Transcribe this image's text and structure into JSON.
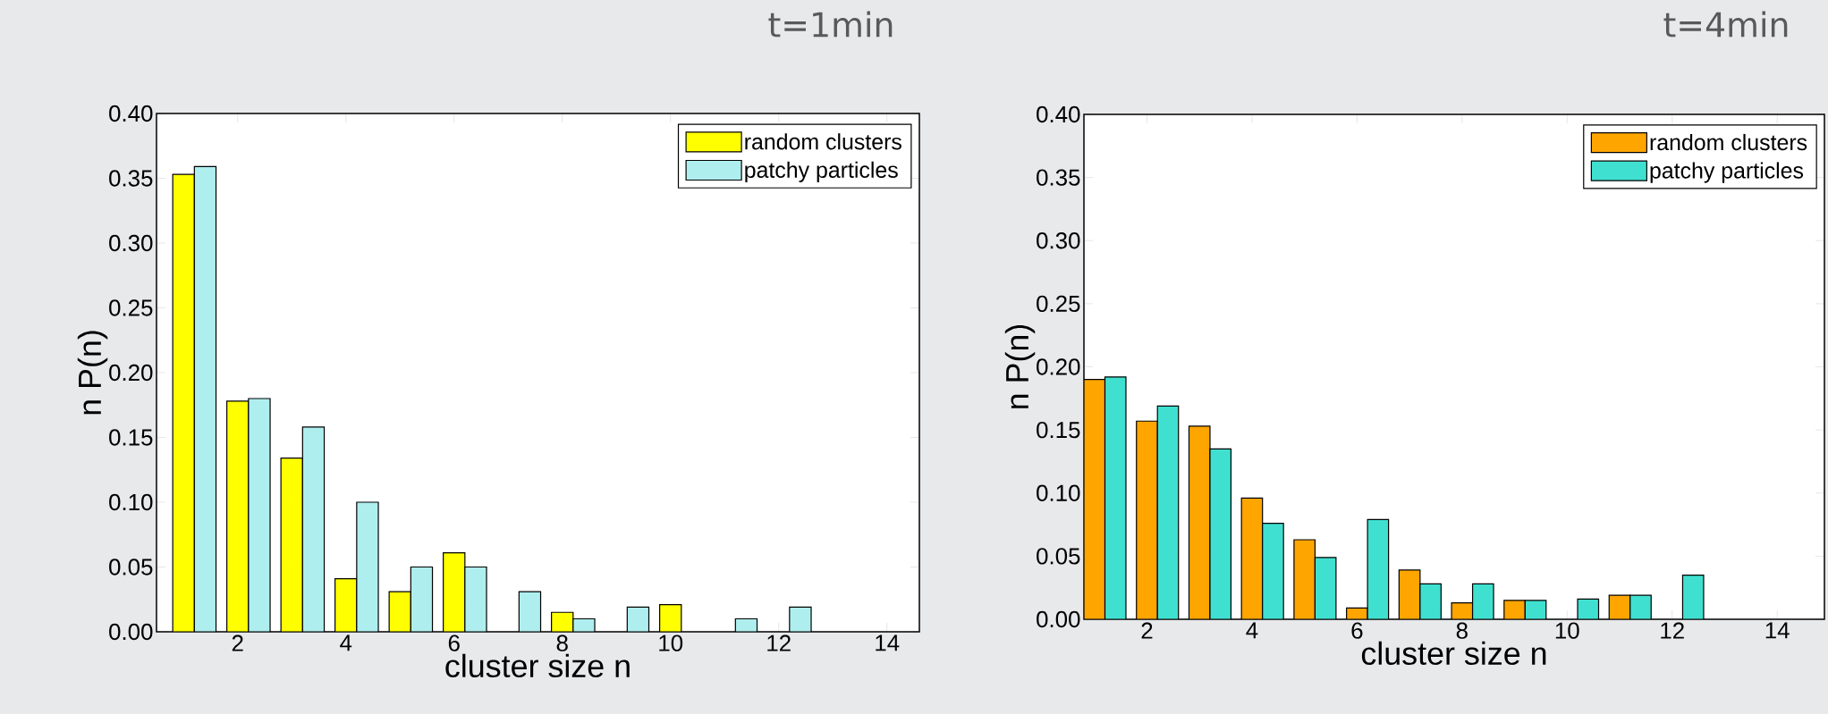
{
  "chart_data": [
    {
      "type": "bar",
      "title": "t=1min",
      "xlabel": "cluster size n",
      "ylabel": "n P(n)",
      "x": [
        1,
        2,
        3,
        4,
        5,
        6,
        7,
        8,
        9,
        10,
        11,
        12
      ],
      "series": [
        {
          "name": "random clusters",
          "color": "#ffff00",
          "values": [
            0.353,
            0.178,
            0.134,
            0.041,
            0.031,
            0.061,
            null,
            0.015,
            null,
            0.021,
            null,
            null
          ]
        },
        {
          "name": "patchy particles",
          "color": "#afeeee",
          "values": [
            0.359,
            0.18,
            0.158,
            0.1,
            0.05,
            0.05,
            0.031,
            0.01,
            0.019,
            null,
            0.01,
            0.019
          ]
        }
      ],
      "xlim": [
        0.5,
        14.6
      ],
      "ylim": [
        0,
        0.4
      ],
      "xticks": [
        2,
        4,
        6,
        8,
        10,
        12,
        14
      ],
      "yticks": [
        {
          "value": 0,
          "label": "0.00"
        },
        {
          "value": 0.05,
          "label": "0.05"
        },
        {
          "value": 0.1,
          "label": "0.10"
        },
        {
          "value": 0.15,
          "label": "0.15"
        },
        {
          "value": 0.2,
          "label": "0.20"
        },
        {
          "value": 0.25,
          "label": "0.25"
        },
        {
          "value": 0.3,
          "label": "0.30"
        },
        {
          "value": 0.35,
          "label": "0.35"
        },
        {
          "value": 0.4,
          "label": "0.40"
        }
      ],
      "legend": "top right"
    },
    {
      "type": "bar",
      "title": "t=4min",
      "xlabel": "cluster size n",
      "ylabel": "n P(n)",
      "x": [
        1,
        2,
        3,
        4,
        5,
        6,
        7,
        8,
        9,
        10,
        11,
        12
      ],
      "series": [
        {
          "name": "random clusters",
          "color": "#ffa500",
          "values": [
            0.19,
            0.157,
            0.153,
            0.096,
            0.063,
            0.009,
            0.039,
            0.013,
            0.015,
            null,
            0.019,
            null
          ]
        },
        {
          "name": "patchy particles",
          "color": "#40e0d0",
          "values": [
            0.192,
            0.169,
            0.135,
            0.076,
            0.049,
            0.079,
            0.028,
            0.028,
            0.015,
            0.016,
            0.019,
            0.035
          ]
        }
      ],
      "xlim": [
        0.8,
        14.9
      ],
      "ylim": [
        0,
        0.4
      ],
      "xticks": [
        2,
        4,
        6,
        8,
        10,
        12,
        14
      ],
      "yticks": [
        {
          "value": 0,
          "label": "0.00"
        },
        {
          "value": 0.05,
          "label": "0.05"
        },
        {
          "value": 0.1,
          "label": "0.10"
        },
        {
          "value": 0.15,
          "label": "0.15"
        },
        {
          "value": 0.2,
          "label": "0.20"
        },
        {
          "value": 0.25,
          "label": "0.25"
        },
        {
          "value": 0.3,
          "label": "0.30"
        },
        {
          "value": 0.35,
          "label": "0.35"
        },
        {
          "value": 0.4,
          "label": "0.40"
        }
      ],
      "legend": "top right"
    }
  ]
}
